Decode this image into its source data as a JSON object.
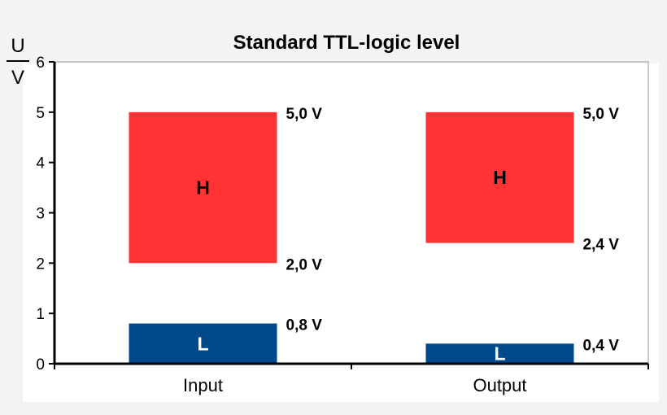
{
  "chart_data": {
    "type": "bar",
    "title": "Standard TTL-logic level",
    "ylabel_top": "U",
    "ylabel_bottom": "V",
    "categories": [
      "Input",
      "Output"
    ],
    "ylim": [
      0,
      6
    ],
    "yticks": [
      0,
      1,
      2,
      3,
      4,
      5,
      6
    ],
    "grid": false,
    "legend": "none",
    "series": [
      {
        "band": "H",
        "color": "#ff3333",
        "text_color": "#000000",
        "ranges": [
          [
            2.0,
            5.0
          ],
          [
            2.4,
            5.0
          ]
        ],
        "low_labels": [
          "2,0 V",
          "2,4 V"
        ],
        "high_labels": [
          "5,0 V",
          "5,0 V"
        ]
      },
      {
        "band": "L",
        "color": "#004a8c",
        "text_color": "#ffffff",
        "ranges": [
          [
            0,
            0.8
          ],
          [
            0,
            0.4
          ]
        ],
        "high_labels": [
          "0,8 V",
          "0,4 V"
        ]
      }
    ]
  }
}
